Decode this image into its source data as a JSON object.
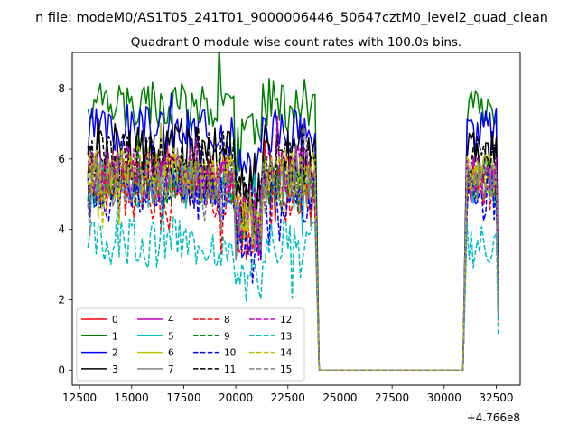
{
  "chart_data": {
    "type": "line",
    "suptitle": "n file: modeM0/AS1T05_241T01_9000006446_50647cztM0_level2_quad_clean",
    "title": "Quadrant 0 module wise count rates with 100.0s bins.",
    "xlabel": "",
    "ylabel": "",
    "x_offset_label": "+4.766e8",
    "xlim": [
      12150,
      33650
    ],
    "ylim": [
      -0.43,
      9.03
    ],
    "x_ticks": [
      12500,
      15000,
      17500,
      20000,
      22500,
      25000,
      27500,
      30000,
      32500
    ],
    "x_tick_labels": [
      "12500",
      "15000",
      "17500",
      "20000",
      "22500",
      "25000",
      "27500",
      "30000",
      "32500"
    ],
    "y_ticks": [
      0,
      2,
      4,
      6,
      8
    ],
    "y_tick_labels": [
      "0",
      "2",
      "4",
      "6",
      "8"
    ],
    "grid": false,
    "legend_position": "lower-left",
    "legend_columns": 4,
    "segments": {
      "active1": [
        12900,
        23800
      ],
      "drop": [
        23800,
        24000
      ],
      "gap": [
        24000,
        30900
      ],
      "rise": [
        30900,
        31100
      ],
      "active2": [
        31100,
        32650
      ],
      "bin_seconds": 100
    },
    "series": [
      {
        "name": "0",
        "color": "#ff0000",
        "dash": "solid",
        "mean": 5.55,
        "spread": 0.3,
        "seed": 1
      },
      {
        "name": "1",
        "color": "#008000",
        "dash": "solid",
        "mean": 7.6,
        "spread": 0.35,
        "seed": 2
      },
      {
        "name": "2",
        "color": "#0000ff",
        "dash": "solid",
        "mean": 6.8,
        "spread": 0.35,
        "seed": 3
      },
      {
        "name": "3",
        "color": "#000000",
        "dash": "solid",
        "mean": 6.2,
        "spread": 0.4,
        "seed": 4
      },
      {
        "name": "4",
        "color": "#bf00bf",
        "dash": "solid",
        "mean": 5.4,
        "spread": 0.35,
        "seed": 5
      },
      {
        "name": "5",
        "color": "#00bfbf",
        "dash": "solid",
        "mean": 5.3,
        "spread": 0.35,
        "seed": 6
      },
      {
        "name": "6",
        "color": "#bfbf00",
        "dash": "solid",
        "mean": 5.5,
        "spread": 0.35,
        "seed": 7
      },
      {
        "name": "7",
        "color": "#808080",
        "dash": "solid",
        "mean": 5.2,
        "spread": 0.35,
        "seed": 8
      },
      {
        "name": "8",
        "color": "#ff0000",
        "dash": "dashed",
        "mean": 5.0,
        "spread": 0.35,
        "seed": 9
      },
      {
        "name": "9",
        "color": "#008000",
        "dash": "dashed",
        "mean": 5.4,
        "spread": 0.35,
        "seed": 10
      },
      {
        "name": "10",
        "color": "#0000ff",
        "dash": "dashed",
        "mean": 4.9,
        "spread": 0.35,
        "seed": 11
      },
      {
        "name": "11",
        "color": "#000000",
        "dash": "dashed",
        "mean": 6.0,
        "spread": 0.4,
        "seed": 12
      },
      {
        "name": "12",
        "color": "#bf00bf",
        "dash": "dashed",
        "mean": 5.7,
        "spread": 0.35,
        "seed": 13
      },
      {
        "name": "13",
        "color": "#00bfbf",
        "dash": "dashed",
        "mean": 3.6,
        "spread": 0.35,
        "seed": 14
      },
      {
        "name": "14",
        "color": "#bfbf00",
        "dash": "dashed",
        "mean": 5.6,
        "spread": 0.35,
        "seed": 15
      },
      {
        "name": "15",
        "color": "#808080",
        "dash": "dashed",
        "mean": 5.3,
        "spread": 0.35,
        "seed": 16
      }
    ]
  }
}
